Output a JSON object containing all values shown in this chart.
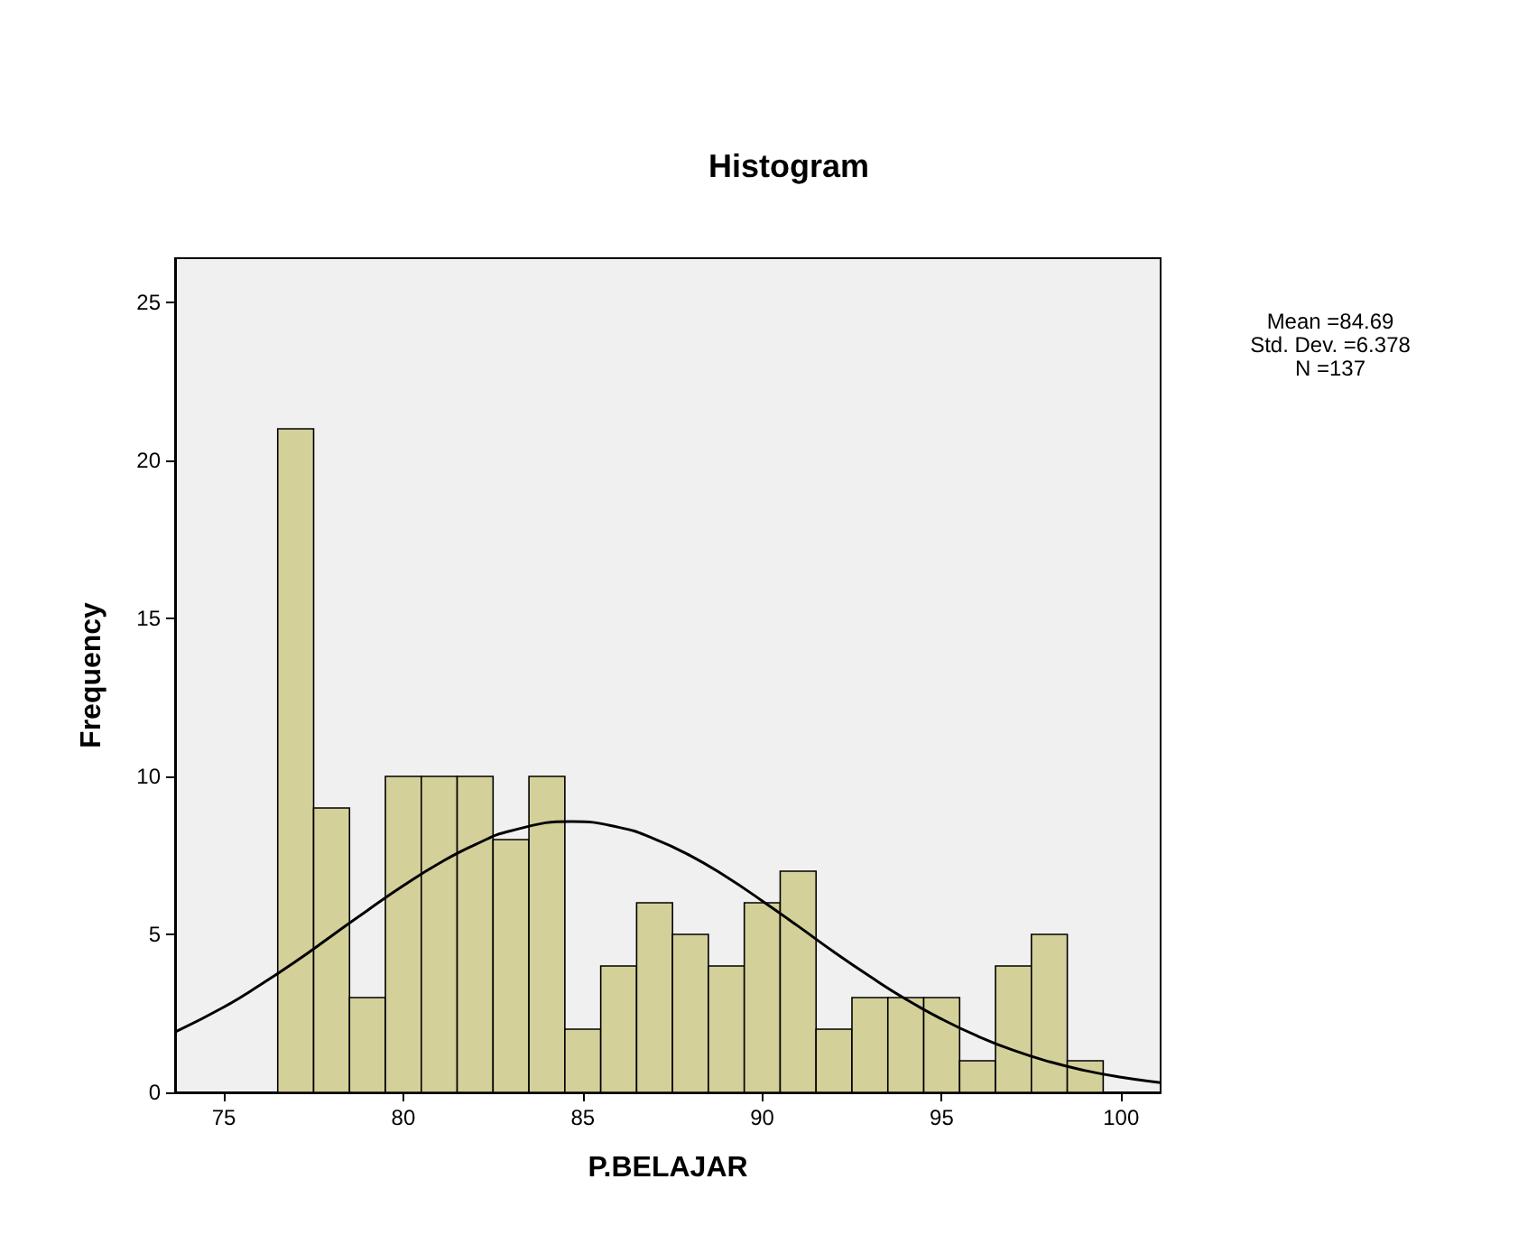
{
  "chart_data": {
    "type": "histogram",
    "title": "Histogram",
    "xlabel": "P.BELAJAR",
    "ylabel": "Frequency",
    "bins": [
      76.5,
      77.5,
      78.5,
      79.5,
      80.5,
      81.5,
      82.5,
      83.5,
      84.5,
      85.5,
      86.5,
      87.5,
      88.5,
      89.5,
      90.5,
      91.5,
      92.5,
      93.5,
      94.5,
      95.5,
      96.5,
      97.5,
      98.5,
      99.5
    ],
    "values": [
      21,
      9,
      3,
      10,
      10,
      10,
      8,
      10,
      2,
      4,
      6,
      5,
      4,
      6,
      7,
      2,
      3,
      3,
      3,
      1,
      4,
      5,
      1
    ],
    "color": "#d4d09a",
    "series": [
      {
        "type": "line",
        "color": "#000000",
        "x": [
          73.64,
          75,
          76,
          77,
          78,
          79,
          80,
          81,
          82,
          83,
          84.69,
          86,
          87,
          88,
          89,
          90,
          91,
          92,
          93,
          94,
          95,
          96,
          97,
          98,
          99,
          100,
          101.1
        ],
        "values": [
          1.91,
          2.7,
          3.39,
          4.14,
          4.95,
          5.76,
          6.54,
          7.25,
          7.84,
          8.28,
          8.57,
          8.39,
          8.02,
          7.49,
          6.82,
          6.06,
          5.26,
          4.44,
          3.67,
          2.95,
          2.32,
          1.78,
          1.33,
          0.97,
          0.69,
          0.48,
          0.31
        ]
      }
    ],
    "xlim": [
      73.64,
      101.1
    ],
    "xticks": [
      75,
      80,
      85,
      90,
      95,
      100
    ],
    "ylim": [
      0,
      26.4
    ],
    "yticks": [
      0,
      5,
      10,
      15,
      20,
      25
    ],
    "annotations": [
      "Mean =84.69",
      "Std. Dev. =6.378",
      "N =137"
    ]
  }
}
